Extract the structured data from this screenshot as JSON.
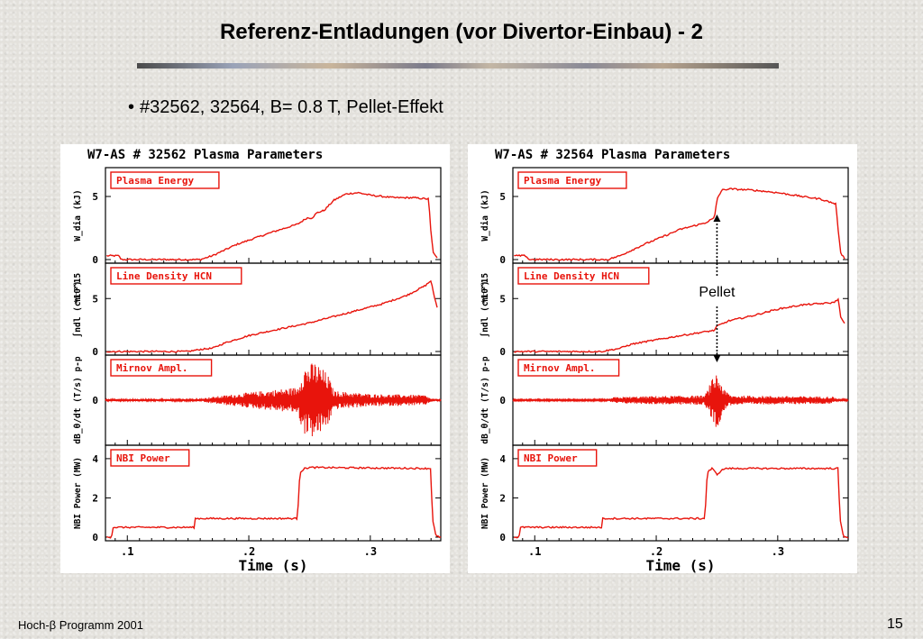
{
  "slide": {
    "title": "Referenz-Entladungen (vor Divertor-Einbau)  - 2",
    "bullet": "#32562, 32564, B= 0.8 T, Pellet-Effekt",
    "footer_left": "Hoch-β Programm 2001",
    "page_number": "15"
  },
  "colors": {
    "trace": "#e8140c",
    "label_border": "#e8140c",
    "axis": "#000000",
    "plot_bg": "#ffffff"
  },
  "chart_data": [
    {
      "type": "line",
      "title": "W7-AS # 32562  Plasma Parameters",
      "xlabel": "Time (s)",
      "x_ticks": [
        ".1",
        ".2",
        ".3"
      ],
      "x_tick_values": [
        0.1,
        0.2,
        0.3
      ],
      "xlim": [
        0.082,
        0.358
      ],
      "annotation": "",
      "panels": [
        {
          "label": "Plasma Energy",
          "ylabel": "W_dia (kJ)",
          "ylim": [
            0,
            7
          ],
          "y_ticks": [
            "0",
            "5"
          ],
          "y_tick_values": [
            0,
            5
          ],
          "multiplier": "",
          "x": [
            0.083,
            0.093,
            0.095,
            0.16,
            0.17,
            0.19,
            0.22,
            0.24,
            0.248,
            0.252,
            0.256,
            0.262,
            0.27,
            0.28,
            0.29,
            0.3,
            0.32,
            0.335,
            0.348,
            0.35,
            0.352,
            0.355
          ],
          "y": [
            0.3,
            0.3,
            0.0,
            0.0,
            0.3,
            1.2,
            2.2,
            2.8,
            3.3,
            3.3,
            3.7,
            3.9,
            4.7,
            5.2,
            5.3,
            5.1,
            4.9,
            4.9,
            4.8,
            2.0,
            0.5,
            0.1
          ]
        },
        {
          "label": "Line Density HCN",
          "ylabel": "∫ndl (cm⁻²)",
          "ylim": [
            0,
            8
          ],
          "y_ticks": [
            "0",
            "5"
          ],
          "y_tick_values": [
            0,
            5
          ],
          "multiplier": "*10^15",
          "x": [
            0.083,
            0.15,
            0.16,
            0.17,
            0.18,
            0.2,
            0.22,
            0.25,
            0.28,
            0.31,
            0.33,
            0.345,
            0.35,
            0.352,
            0.355
          ],
          "y": [
            0.0,
            0.0,
            0.2,
            0.3,
            0.8,
            1.5,
            2.0,
            2.7,
            3.6,
            4.5,
            5.3,
            6.2,
            6.7,
            5.5,
            4.2
          ]
        },
        {
          "label": "Mirnov Ampl.",
          "ylabel": "dB_θ/dt (T/s) p-p",
          "ylim": [
            -8,
            8
          ],
          "y_ticks": [
            "0"
          ],
          "y_tick_values": [
            0
          ],
          "multiplier": "",
          "envelope_x": [
            0.083,
            0.16,
            0.165,
            0.2,
            0.24,
            0.245,
            0.255,
            0.265,
            0.27,
            0.3,
            0.345,
            0.35,
            0.358
          ],
          "envelope_amplitude": [
            0.2,
            0.2,
            0.5,
            1.5,
            2.5,
            6.5,
            7.5,
            5.0,
            1.8,
            1.2,
            1.0,
            0.3,
            0.2
          ]
        },
        {
          "label": "NBI Power",
          "ylabel": "NBI Power (MW)",
          "ylim": [
            0,
            4.5
          ],
          "y_ticks": [
            "0",
            "2",
            "4"
          ],
          "y_tick_values": [
            0,
            2,
            4
          ],
          "multiplier": "",
          "x": [
            0.083,
            0.087,
            0.088,
            0.155,
            0.156,
            0.24,
            0.242,
            0.246,
            0.25,
            0.35,
            0.351,
            0.354,
            0.358
          ],
          "y": [
            0.0,
            0.0,
            0.5,
            0.5,
            0.95,
            0.95,
            3.3,
            3.5,
            3.55,
            3.5,
            1.0,
            0.05,
            0.0
          ]
        }
      ]
    },
    {
      "type": "line",
      "title": "W7-AS # 32564  Plasma Parameters",
      "xlabel": "Time (s)",
      "x_ticks": [
        ".1",
        ".2",
        ".3"
      ],
      "x_tick_values": [
        0.1,
        0.2,
        0.3
      ],
      "xlim": [
        0.082,
        0.358
      ],
      "annotation": "Pellet",
      "pellet_time": 0.25,
      "panels": [
        {
          "label": "Plasma Energy",
          "ylabel": "W_dia (kJ)",
          "ylim": [
            0,
            7
          ],
          "y_ticks": [
            "0",
            "5"
          ],
          "y_tick_values": [
            0,
            5
          ],
          "multiplier": "",
          "x": [
            0.083,
            0.093,
            0.095,
            0.16,
            0.17,
            0.19,
            0.22,
            0.24,
            0.248,
            0.25,
            0.254,
            0.26,
            0.28,
            0.3,
            0.32,
            0.335,
            0.348,
            0.35,
            0.352,
            0.355
          ],
          "y": [
            0.3,
            0.3,
            0.0,
            0.0,
            0.3,
            1.2,
            2.4,
            2.9,
            3.3,
            4.8,
            5.5,
            5.6,
            5.5,
            5.3,
            5.0,
            4.8,
            4.4,
            2.0,
            0.5,
            0.1
          ]
        },
        {
          "label": "Line Density HCN",
          "ylabel": "∫ndl (cm⁻²)",
          "ylim": [
            0,
            8
          ],
          "y_ticks": [
            "0",
            "5"
          ],
          "y_tick_values": [
            0,
            5
          ],
          "multiplier": "*10^15",
          "x": [
            0.083,
            0.155,
            0.165,
            0.17,
            0.18,
            0.2,
            0.22,
            0.248,
            0.25,
            0.26,
            0.28,
            0.3,
            0.32,
            0.345,
            0.35,
            0.352,
            0.355
          ],
          "y": [
            0.0,
            0.0,
            0.2,
            0.3,
            0.7,
            1.1,
            1.5,
            2.0,
            2.4,
            2.9,
            3.4,
            4.0,
            4.4,
            4.6,
            4.9,
            3.2,
            2.6
          ]
        },
        {
          "label": "Mirnov Ampl.",
          "ylabel": "dB_θ/dt (T/s) p-p",
          "ylim": [
            -8,
            8
          ],
          "y_ticks": [
            "0"
          ],
          "y_tick_values": [
            0
          ],
          "multiplier": "",
          "envelope_x": [
            0.083,
            0.16,
            0.165,
            0.2,
            0.24,
            0.246,
            0.25,
            0.256,
            0.262,
            0.3,
            0.345,
            0.35,
            0.358
          ],
          "envelope_amplitude": [
            0.15,
            0.15,
            0.6,
            0.8,
            0.9,
            4.0,
            5.5,
            2.0,
            0.9,
            0.8,
            0.7,
            0.2,
            0.15
          ]
        },
        {
          "label": "NBI Power",
          "ylabel": "NBI Power (MW)",
          "ylim": [
            0,
            4.5
          ],
          "y_ticks": [
            "0",
            "2",
            "4"
          ],
          "y_tick_values": [
            0,
            2,
            4
          ],
          "multiplier": "",
          "x": [
            0.083,
            0.087,
            0.088,
            0.155,
            0.156,
            0.24,
            0.242,
            0.246,
            0.25,
            0.256,
            0.35,
            0.351,
            0.354,
            0.358
          ],
          "y": [
            0.0,
            0.0,
            0.5,
            0.5,
            0.95,
            0.95,
            3.3,
            3.5,
            3.2,
            3.5,
            3.5,
            1.0,
            0.05,
            0.0
          ]
        }
      ]
    }
  ]
}
